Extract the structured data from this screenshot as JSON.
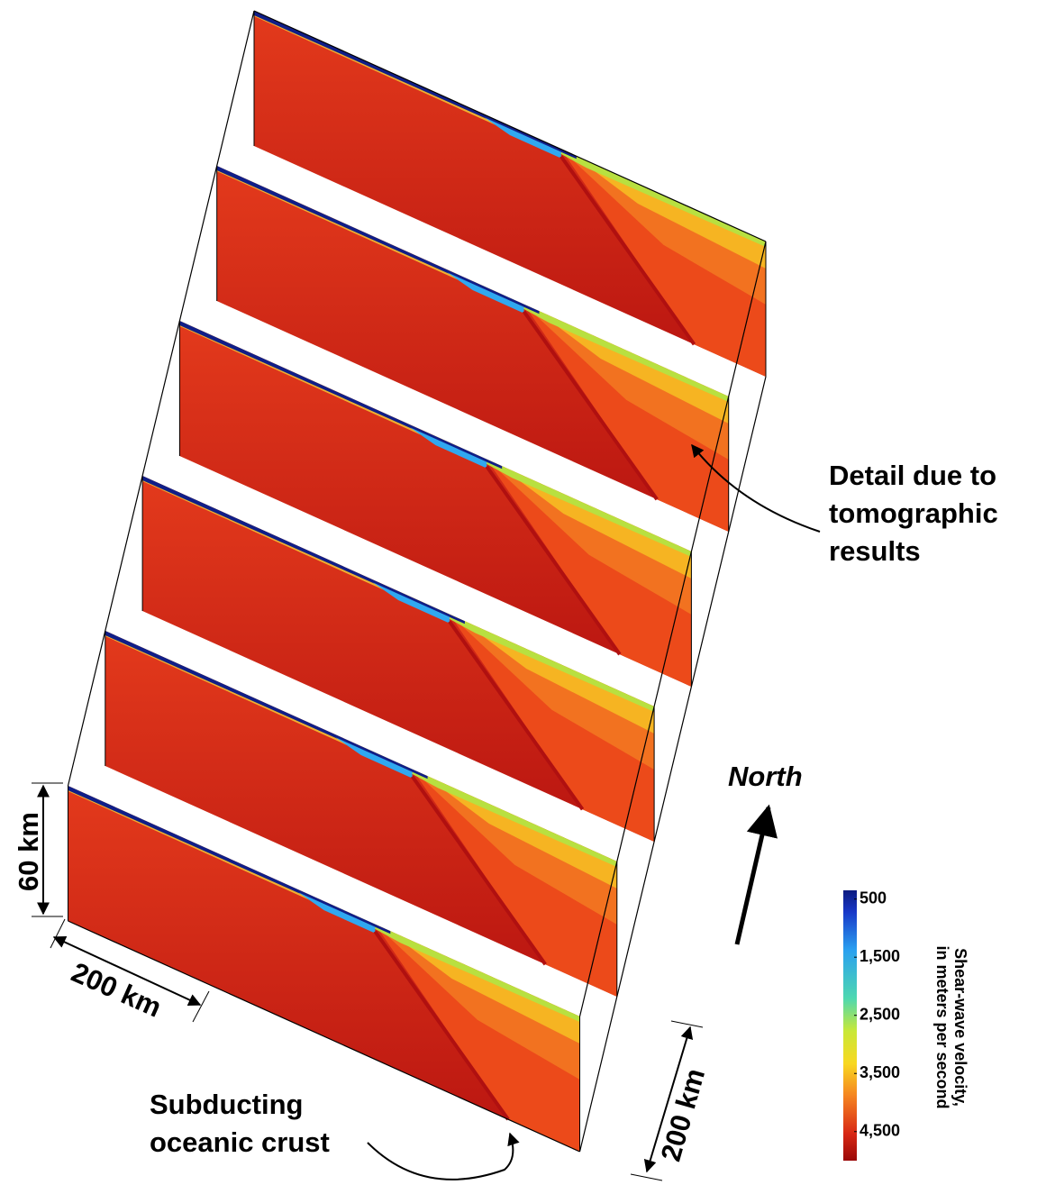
{
  "annotations": {
    "detail": [
      "Detail due to",
      "tomographic",
      "results"
    ],
    "subducting": [
      "Subducting",
      "oceanic crust"
    ],
    "north": "North"
  },
  "scale_bars": {
    "depth": "60 km",
    "along_left": "200 km",
    "along_right": "200 km"
  },
  "colorbar": {
    "title": [
      "Shear-wave velocity,",
      "in meters per second"
    ],
    "range": [
      350,
      5000
    ],
    "ticks": [
      500,
      {
        "value": 1500,
        "label": "1,500"
      },
      {
        "value": 2500,
        "label": "2,500"
      },
      {
        "value": 3500,
        "label": "3,500"
      },
      {
        "value": 4500,
        "label": "4,500"
      }
    ]
  }
}
